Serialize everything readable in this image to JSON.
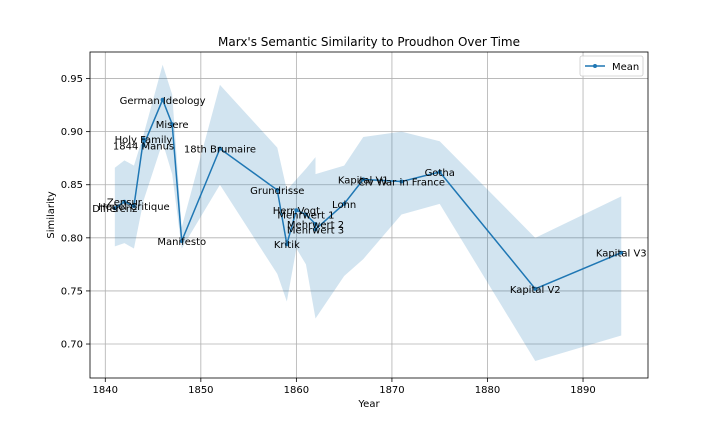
{
  "chart_data": {
    "type": "line",
    "title": "Marx's Semantic Similarity to Proudhon Over Time",
    "xlabel": "Year",
    "ylabel": "Similarity",
    "xlim": [
      1838.4,
      1896.8
    ],
    "ylim": [
      0.668,
      0.975
    ],
    "xticks": [
      1840,
      1850,
      1860,
      1870,
      1880,
      1890
    ],
    "yticks": [
      0.7,
      0.75,
      0.8,
      0.85,
      0.9,
      0.95
    ],
    "ytick_labels": [
      "0.70",
      "0.75",
      "0.80",
      "0.85",
      "0.90",
      "0.95"
    ],
    "grid": true,
    "legend": {
      "placement": "top-right",
      "entries": [
        "Mean"
      ]
    },
    "colors": {
      "line": "#1f77b4",
      "band": "#1f77b4",
      "grid": "#b0b0b0"
    },
    "series": [
      {
        "name": "Mean",
        "points": [
          {
            "x": 1841,
            "y": 0.828,
            "lo": 0.792,
            "hi": 0.866,
            "label": "Differenz"
          },
          {
            "x": 1842,
            "y": 0.834,
            "lo": 0.795,
            "hi": 0.873,
            "label": "Zensur"
          },
          {
            "x": 1843,
            "y": 0.83,
            "lo": 0.79,
            "hi": 0.868,
            "label": "Hegel Critique"
          },
          {
            "x": 1844,
            "y": 0.893,
            "lo": 0.835,
            "hi": 0.897,
            "label": "Holy Family"
          },
          {
            "x": 1844,
            "y": 0.887,
            "lo": 0.835,
            "hi": 0.897,
            "label": "1844 Manus"
          },
          {
            "x": 1846,
            "y": 0.93,
            "lo": 0.89,
            "hi": 0.963,
            "label": "German Ideology"
          },
          {
            "x": 1847,
            "y": 0.907,
            "lo": 0.86,
            "hi": 0.935,
            "label": "Misere"
          },
          {
            "x": 1848,
            "y": 0.797,
            "lo": 0.79,
            "hi": 0.81,
            "label": "Manifesto"
          },
          {
            "x": 1852,
            "y": 0.884,
            "lo": 0.85,
            "hi": 0.944,
            "label": "18th Brumaire"
          },
          {
            "x": 1858,
            "y": 0.845,
            "lo": 0.766,
            "hi": 0.885,
            "label": "Grundrisse"
          },
          {
            "x": 1859,
            "y": 0.794,
            "lo": 0.74,
            "hi": 0.845,
            "label": "Kritik"
          },
          {
            "x": 1860,
            "y": 0.826,
            "lo": 0.79,
            "hi": 0.855,
            "label": "Herr Vogt"
          },
          {
            "x": 1861,
            "y": 0.822,
            "lo": 0.775,
            "hi": 0.865,
            "label": "Mehrwert 1"
          },
          {
            "x": 1862,
            "y": 0.813,
            "lo": 0.724,
            "hi": 0.876,
            "label": "Mehrwert 2"
          },
          {
            "x": 1862,
            "y": 0.808,
            "lo": 0.724,
            "hi": 0.86,
            "label": "Mehrwert 3"
          },
          {
            "x": 1865,
            "y": 0.832,
            "lo": 0.764,
            "hi": 0.868,
            "label": "Lohn"
          },
          {
            "x": 1867,
            "y": 0.855,
            "lo": 0.78,
            "hi": 0.895,
            "label": "Kapital V1"
          },
          {
            "x": 1871,
            "y": 0.853,
            "lo": 0.822,
            "hi": 0.9,
            "label": "Civ War in France"
          },
          {
            "x": 1875,
            "y": 0.862,
            "lo": 0.832,
            "hi": 0.891,
            "label": "Gotha"
          },
          {
            "x": 1885,
            "y": 0.752,
            "lo": 0.684,
            "hi": 0.8,
            "label": "Kapital V2"
          },
          {
            "x": 1894,
            "y": 0.786,
            "lo": 0.708,
            "hi": 0.839,
            "label": "Kapital V3"
          }
        ]
      }
    ]
  }
}
